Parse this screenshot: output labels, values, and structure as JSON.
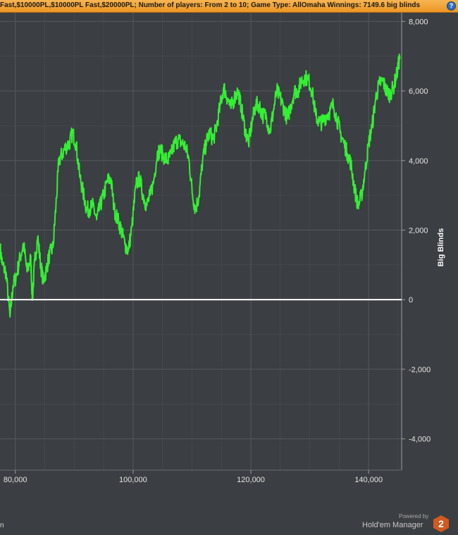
{
  "header": {
    "title": "Fast,$10000PL,$10000PL Fast,$20000PL; Number of players: From 2 to 10; Game Type: AllOmaha  Winnings:  7149.6 big blinds",
    "help_glyph": "?"
  },
  "footer": {
    "partial_text": "n",
    "powered_by": "Powered by",
    "brand_name": "Hold'em Manager",
    "brand_logo_text": "2"
  },
  "colors": {
    "line": "#33f033",
    "zero_line": "#ffffff",
    "background": "#3b3e42",
    "grid": "#555a5f",
    "titlebar": "#f0a030",
    "logo": "#d25a1e"
  },
  "chart_data": {
    "type": "line",
    "xlabel": "",
    "ylabel": "Big Blinds",
    "x_ticks": [
      80000,
      100000,
      120000,
      140000
    ],
    "x_tick_labels": [
      "80,000",
      "100,000",
      "120,000",
      "140,000"
    ],
    "y_ticks": [
      8000,
      6000,
      4000,
      2000,
      0,
      -2000,
      -4000
    ],
    "y_tick_labels": [
      "8,000",
      "6,000",
      "4,000",
      "2,000",
      "0",
      "-2,000",
      "-4,000"
    ],
    "xlim": [
      77400,
      145600
    ],
    "ylim": [
      -4900,
      8250
    ],
    "zero_line": 0,
    "grid": true,
    "series": [
      {
        "values_x": [
          77400,
          77800,
          78400,
          79100,
          79600,
          80200,
          80800,
          81400,
          82000,
          82600,
          82900,
          83300,
          83800,
          84300,
          84800,
          85300,
          85800,
          86400,
          86900,
          87400,
          88000,
          88600,
          89200,
          89700,
          90300,
          90900,
          91500,
          92100,
          92600,
          93200,
          93800,
          94400,
          95000,
          95600,
          96200,
          96800,
          97400,
          98000,
          98600,
          99200,
          99800,
          100500,
          101100,
          101700,
          102300,
          102900,
          103500,
          104100,
          104600,
          105300,
          105900,
          106500,
          107100,
          107700,
          108300,
          108900,
          109500,
          110100,
          110600,
          111200,
          111800,
          112400,
          113000,
          113600,
          114200,
          114800,
          115400,
          116000,
          116600,
          117200,
          117800,
          118400,
          119000,
          119600,
          120200,
          120800,
          121400,
          122000,
          122600,
          123200,
          123800,
          124400,
          125000,
          125600,
          126200,
          126800,
          127400,
          128000,
          128600,
          129200,
          129800,
          130400,
          131000,
          131600,
          132200,
          132800,
          133400,
          134000,
          134600,
          135200,
          135800,
          136400,
          137000,
          137600,
          138200,
          138800,
          139400,
          140000,
          140600,
          141200,
          141800,
          142400,
          143000,
          143600,
          144200,
          144800,
          145300
        ],
        "values_y": [
          1500,
          1000,
          800,
          -500,
          400,
          700,
          1200,
          1600,
          800,
          1200,
          0,
          1100,
          1800,
          1000,
          500,
          900,
          1300,
          1500,
          2700,
          4000,
          4200,
          4400,
          4500,
          4800,
          4500,
          3600,
          3100,
          2600,
          2600,
          2700,
          2300,
          2700,
          3000,
          3400,
          3500,
          2600,
          2300,
          2000,
          1600,
          1400,
          2100,
          3300,
          3500,
          3000,
          2700,
          3000,
          3400,
          4200,
          4300,
          4100,
          4000,
          4200,
          4500,
          4600,
          4500,
          4400,
          4000,
          3000,
          2600,
          3000,
          4000,
          4500,
          4800,
          4600,
          5000,
          5600,
          6100,
          5800,
          5500,
          5800,
          6000,
          5500,
          4900,
          4500,
          5100,
          5600,
          5600,
          5300,
          5300,
          4800,
          5400,
          6000,
          5800,
          5500,
          5200,
          5600,
          6000,
          6000,
          6300,
          6400,
          6300,
          6000,
          5300,
          5100,
          5100,
          5300,
          5400,
          5600,
          5200,
          4800,
          4500,
          4200,
          3900,
          3200,
          2700,
          3000,
          3700,
          4500,
          5000,
          5800,
          6200,
          6300,
          6000,
          5900,
          6100,
          6500,
          7000
        ]
      }
    ]
  }
}
